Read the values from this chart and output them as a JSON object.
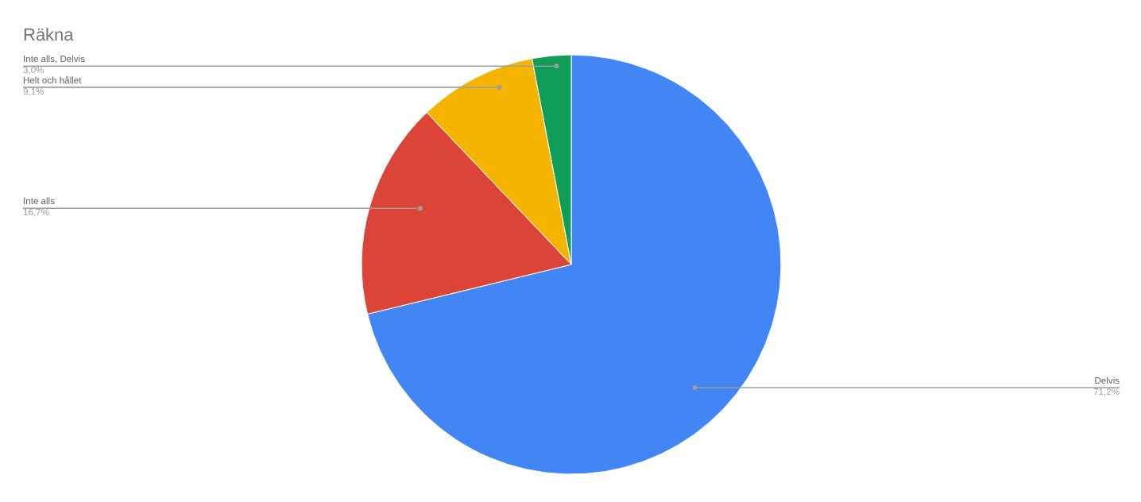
{
  "chart_data": {
    "type": "pie",
    "title": "Räkna",
    "categories": [
      "Delvis",
      "Inte alls",
      "Helt och hållet",
      "Inte alls, Delvis"
    ],
    "values": [
      71.2,
      16.7,
      9.1,
      3.0
    ],
    "value_labels": [
      "71,2%",
      "16,7%",
      "9,1%",
      "3,0%"
    ],
    "colors": [
      "#4285f4",
      "#db4437",
      "#f4b400",
      "#0f9d58"
    ]
  }
}
